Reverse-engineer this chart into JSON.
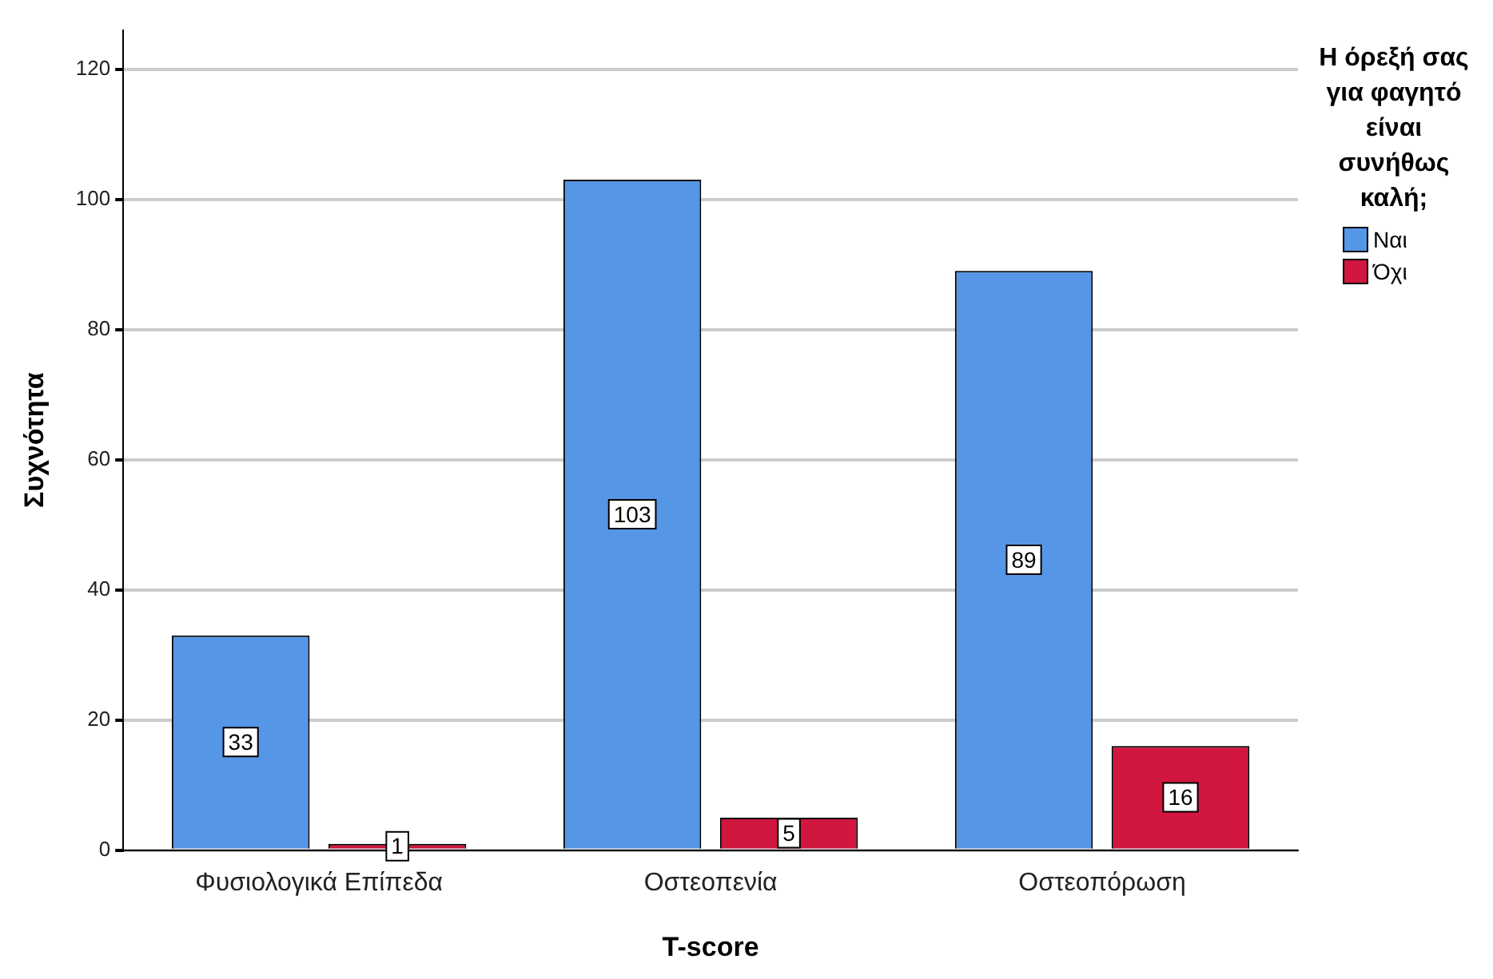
{
  "chart_data": {
    "type": "bar",
    "xlabel": "T-score",
    "ylabel": "Συχνότητα",
    "legend_title": "Η όρεξή σας για φαγητό είναι συνήθως καλή;",
    "categories": [
      "Φυσιολογικά Επίπεδα",
      "Οστεοπενία",
      "Οστεοπόρωση"
    ],
    "series": [
      {
        "name": "Ναι",
        "color": "#5596e6",
        "values": [
          33,
          103,
          89
        ]
      },
      {
        "name": "Όχι",
        "color": "#d1163f",
        "values": [
          1,
          5,
          16
        ]
      }
    ],
    "ylim": [
      0,
      126
    ],
    "yticks": [
      0,
      20,
      40,
      60,
      80,
      100,
      120
    ],
    "grid": "y",
    "legend": "right",
    "data_labels": true
  }
}
